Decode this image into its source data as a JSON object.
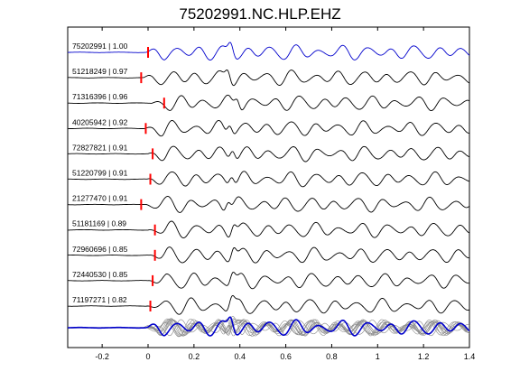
{
  "title": "75202991.NC.HLP.EHZ",
  "chart_data": {
    "type": "line",
    "title": "75202991.NC.HLP.EHZ",
    "xlabel": "",
    "ylabel": "",
    "xlim": [
      -0.35,
      1.4
    ],
    "xticks": [
      -0.2,
      0,
      0.2,
      0.4,
      0.6,
      0.8,
      1,
      1.2,
      1.4
    ],
    "xtick_labels": [
      "-0.2",
      "0",
      "0.2",
      "0.4",
      "0.6",
      "0.8",
      "1",
      "1.2",
      "1.4"
    ],
    "grid": false,
    "colors": {
      "reference": "#0000cc",
      "trace": "#000000",
      "pick": "#ff0000",
      "stack_overlay": "#888888"
    },
    "series": [
      {
        "label": "75202991 | 1.00",
        "pick_time": 0.0,
        "reference": true
      },
      {
        "label": "51218249 | 0.97",
        "pick_time": -0.03
      },
      {
        "label": "71316396 | 0.96",
        "pick_time": 0.07
      },
      {
        "label": "40205942 | 0.92",
        "pick_time": -0.01
      },
      {
        "label": "72827821 | 0.91",
        "pick_time": 0.02
      },
      {
        "label": "51220799 | 0.91",
        "pick_time": 0.01
      },
      {
        "label": "21277470 | 0.91",
        "pick_time": -0.03
      },
      {
        "label": "51181169 | 0.89",
        "pick_time": 0.03
      },
      {
        "label": "72960696 | 0.85",
        "pick_time": 0.03
      },
      {
        "label": "72440530 | 0.85",
        "pick_time": 0.02
      },
      {
        "label": "71197271 | 0.82",
        "pick_time": 0.01
      }
    ],
    "stack": {
      "description": "",
      "traces_overlaid": 11
    }
  }
}
